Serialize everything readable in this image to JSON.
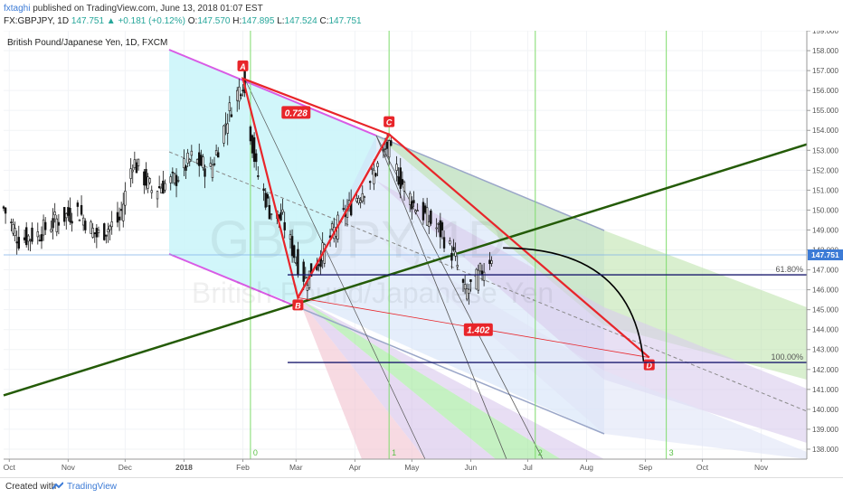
{
  "header": {
    "author": "fxtaghi",
    "published_text": " published on TradingView.com, June 13, 2018 01:07 EST",
    "symbol_line": "FX:GBPJPY, 1D",
    "change_text": "147.751 ▲ +0.181 (+0.12%)",
    "ohlc": [
      {
        "label": "O:",
        "value": "147.570"
      },
      {
        "label": "H:",
        "value": "147.895"
      },
      {
        "label": "L:",
        "value": "147.524"
      },
      {
        "label": "C:",
        "value": "147.751"
      }
    ]
  },
  "chart_title": "British Pound/Japanese Yen, 1D, FXCM",
  "watermark": {
    "big": "GBPJPY, 1D",
    "sub": "British Pound/Japanese Yen"
  },
  "footer": {
    "created": "Created with",
    "brand": "TradingView"
  },
  "colors": {
    "up": "#26a69a",
    "candle": "#111111",
    "pattern": "#e8252a",
    "trendline": "#245b07",
    "accent": "#3c7bd6"
  },
  "chart_data": {
    "type": "line",
    "symbol": "GBPJPY",
    "timeframe": "1D",
    "ylim": [
      137.5,
      159.0
    ],
    "yticks": [
      "138.000",
      "139.000",
      "140.000",
      "141.000",
      "142.000",
      "143.000",
      "144.000",
      "145.000",
      "146.000",
      "147.000",
      "148.000",
      "149.000",
      "150.000",
      "151.000",
      "152.000",
      "153.000",
      "154.000",
      "155.000",
      "156.000",
      "157.000",
      "158.000",
      "159.000"
    ],
    "xticks": [
      "Oct",
      "Nov",
      "Dec",
      "2018",
      "Feb",
      "Mar",
      "Apr",
      "May",
      "Jun",
      "Jul",
      "Aug",
      "Sep",
      "Oct",
      "Nov"
    ],
    "last_price": "147.751",
    "close_series": [
      {
        "date": "2017-09-28",
        "value": 150.1
      },
      {
        "date": "2017-10-06",
        "value": 148.5
      },
      {
        "date": "2017-10-16",
        "value": 148.8
      },
      {
        "date": "2017-10-26",
        "value": 149.5
      },
      {
        "date": "2017-11-06",
        "value": 150.0
      },
      {
        "date": "2017-11-16",
        "value": 148.7
      },
      {
        "date": "2017-11-28",
        "value": 149.5
      },
      {
        "date": "2017-12-05",
        "value": 152.5
      },
      {
        "date": "2017-12-15",
        "value": 151.0
      },
      {
        "date": "2017-12-27",
        "value": 151.5
      },
      {
        "date": "2018-01-05",
        "value": 152.6
      },
      {
        "date": "2018-01-15",
        "value": 152.0
      },
      {
        "date": "2018-01-25",
        "value": 155.0
      },
      {
        "date": "2018-02-01",
        "value": 156.5
      },
      {
        "date": "2018-02-08",
        "value": 152.0
      },
      {
        "date": "2018-02-15",
        "value": 150.0
      },
      {
        "date": "2018-02-22",
        "value": 149.5
      },
      {
        "date": "2018-03-01",
        "value": 147.5
      },
      {
        "date": "2018-03-06",
        "value": 146.5
      },
      {
        "date": "2018-03-12",
        "value": 147.3
      },
      {
        "date": "2018-03-20",
        "value": 148.8
      },
      {
        "date": "2018-03-28",
        "value": 150.0
      },
      {
        "date": "2018-04-05",
        "value": 151.0
      },
      {
        "date": "2018-04-12",
        "value": 152.0
      },
      {
        "date": "2018-04-18",
        "value": 153.2
      },
      {
        "date": "2018-04-25",
        "value": 151.5
      },
      {
        "date": "2018-05-02",
        "value": 150.3
      },
      {
        "date": "2018-05-10",
        "value": 149.5
      },
      {
        "date": "2018-05-17",
        "value": 148.8
      },
      {
        "date": "2018-05-24",
        "value": 147.5
      },
      {
        "date": "2018-05-29",
        "value": 145.8
      },
      {
        "date": "2018-06-04",
        "value": 146.5
      },
      {
        "date": "2018-06-12",
        "value": 147.751
      }
    ],
    "harmonic_pattern": {
      "points": [
        {
          "label": "A",
          "date": "2018-02-01",
          "price": 156.6
        },
        {
          "label": "B",
          "date": "2018-03-02",
          "price": 145.6
        },
        {
          "label": "C",
          "date": "2018-04-19",
          "price": 153.8
        },
        {
          "label": "D",
          "date": "2018-09-03",
          "price": 142.6
        }
      ],
      "ratios": [
        {
          "value": "0.728",
          "date": "2018-03-01",
          "price": 154.9
        },
        {
          "value": "1.402",
          "date": "2018-06-05",
          "price": 144.0
        }
      ]
    },
    "fib_levels": [
      {
        "label": "61.80%",
        "price": 146.75
      },
      {
        "label": "100.00%",
        "price": 142.35
      }
    ],
    "fib_time_labels": [
      "0",
      "1",
      "2",
      "3"
    ],
    "trendline": {
      "start": {
        "date": "2017-09-28",
        "price": 140.7
      },
      "end": {
        "date": "2018-11-25",
        "price": 153.3
      }
    }
  }
}
